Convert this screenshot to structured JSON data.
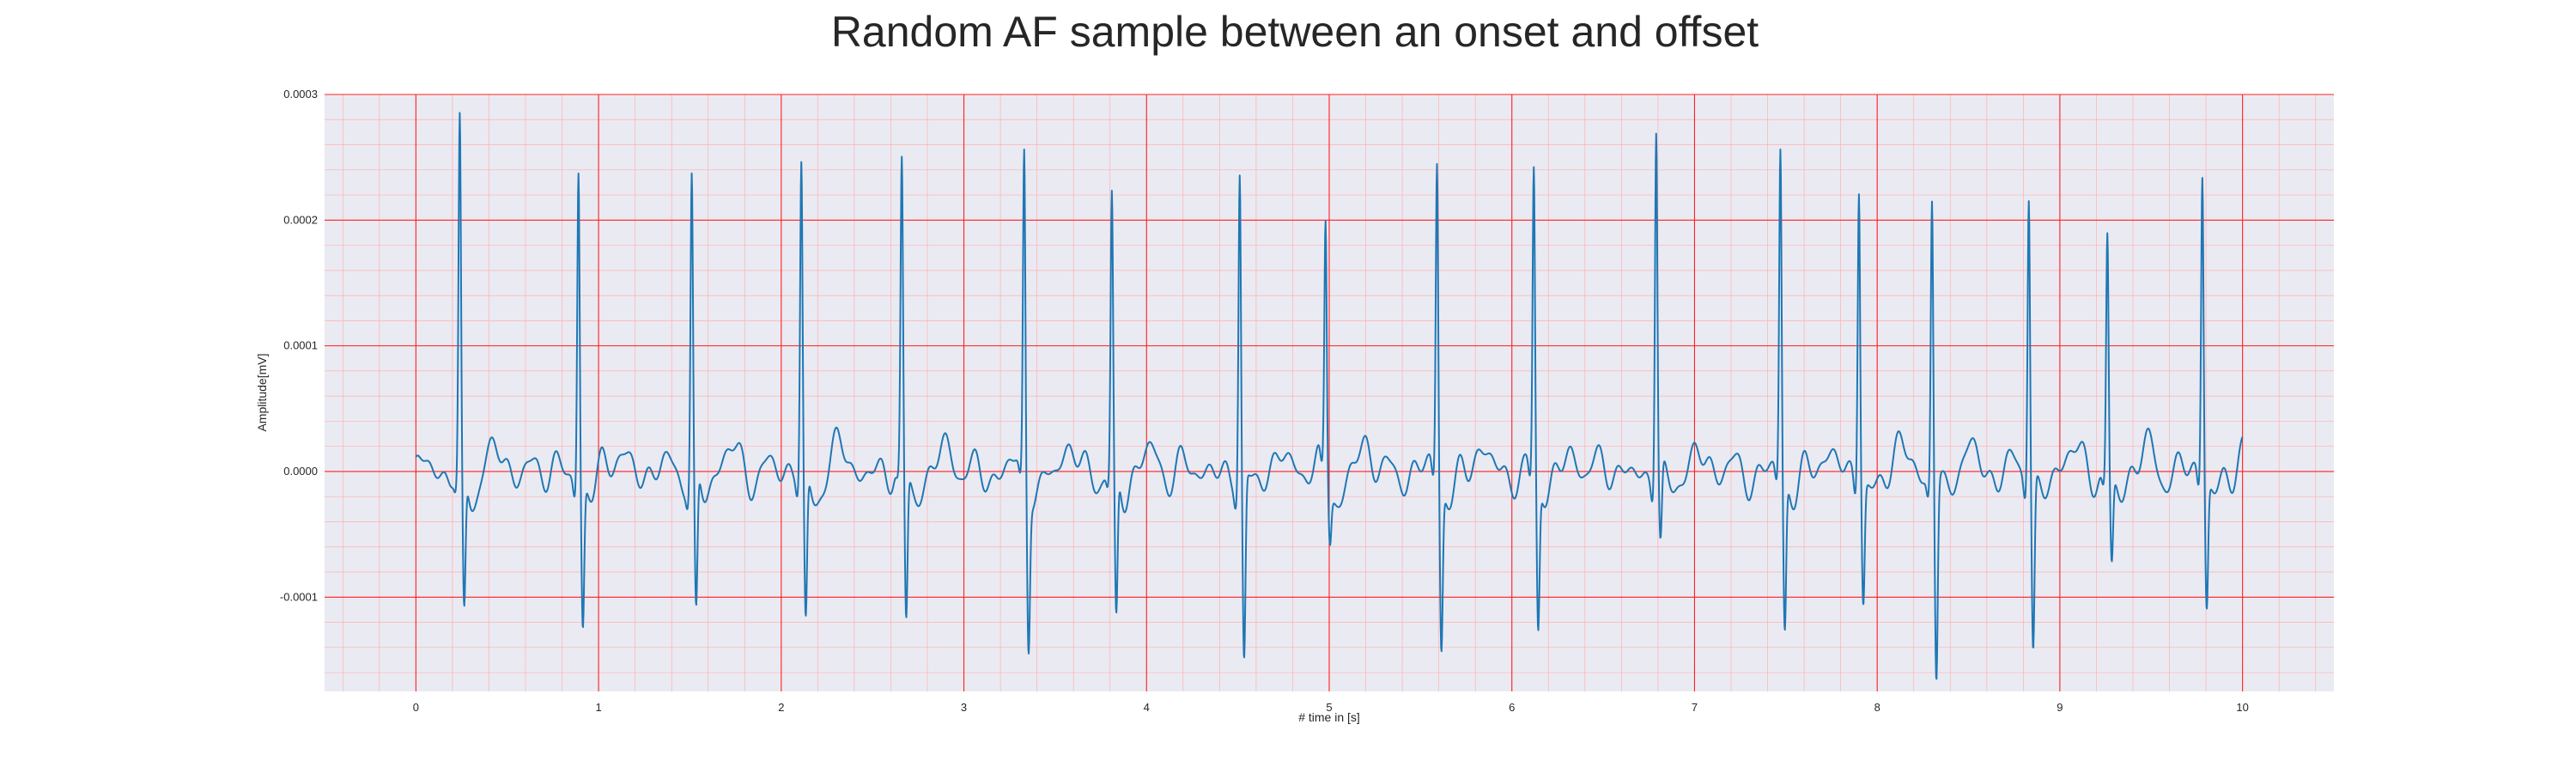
{
  "chart_data": {
    "type": "line",
    "title": "Random AF sample between an onset and offset",
    "xlabel": "# time in [s]",
    "ylabel": "Amplitude[mV]",
    "xlim": [
      -0.5,
      10.5
    ],
    "ylim": [
      -0.000175,
      0.0003
    ],
    "x_ticks": [
      0,
      1,
      2,
      3,
      4,
      5,
      6,
      7,
      8,
      9,
      10
    ],
    "x_tick_labels": [
      "0",
      "1",
      "2",
      "3",
      "4",
      "5",
      "6",
      "7",
      "8",
      "9",
      "10"
    ],
    "y_ticks": [
      -0.0001,
      0.0,
      0.0001,
      0.0002,
      0.0003
    ],
    "y_tick_labels": [
      "-0.0001",
      "0.0000",
      "0.0001",
      "0.0002",
      "0.0003"
    ],
    "grid": true,
    "colors": {
      "line": "#1f77b4",
      "background": "#eaeaf2",
      "major_grid": "#ff2020",
      "minor_grid": "#ffb0b0"
    },
    "series": [
      {
        "name": "",
        "r_peaks": [
          {
            "t": 0.24,
            "peak": 0.000275,
            "trough": -0.000112
          },
          {
            "t": 0.89,
            "peak": 0.00025,
            "trough": -0.000115
          },
          {
            "t": 1.51,
            "peak": 0.000238,
            "trough": -0.000115
          },
          {
            "t": 2.11,
            "peak": 0.000247,
            "trough": -0.00012
          },
          {
            "t": 2.66,
            "peak": 0.000237,
            "trough": -0.000122
          },
          {
            "t": 3.33,
            "peak": 0.000258,
            "trough": -0.000122
          },
          {
            "t": 3.81,
            "peak": 0.000215,
            "trough": -0.00012
          },
          {
            "t": 4.51,
            "peak": 0.000245,
            "trough": -0.00015
          },
          {
            "t": 4.98,
            "peak": 0.0002,
            "trough": -4e-05
          },
          {
            "t": 5.59,
            "peak": 0.00025,
            "trough": -0.00013
          },
          {
            "t": 6.12,
            "peak": 0.000242,
            "trough": -0.000118
          },
          {
            "t": 6.79,
            "peak": 0.00028,
            "trough": -6e-05
          },
          {
            "t": 7.47,
            "peak": 0.000258,
            "trough": -0.000122
          },
          {
            "t": 7.9,
            "peak": 0.000239,
            "trough": -9.3e-05
          },
          {
            "t": 8.3,
            "peak": 0.000228,
            "trough": -0.000156
          },
          {
            "t": 8.83,
            "peak": 0.000232,
            "trough": -0.000135
          },
          {
            "t": 9.26,
            "peak": 0.00019,
            "trough": -7e-05
          },
          {
            "t": 9.78,
            "peak": 0.000243,
            "trough": -0.0001
          }
        ]
      }
    ]
  }
}
